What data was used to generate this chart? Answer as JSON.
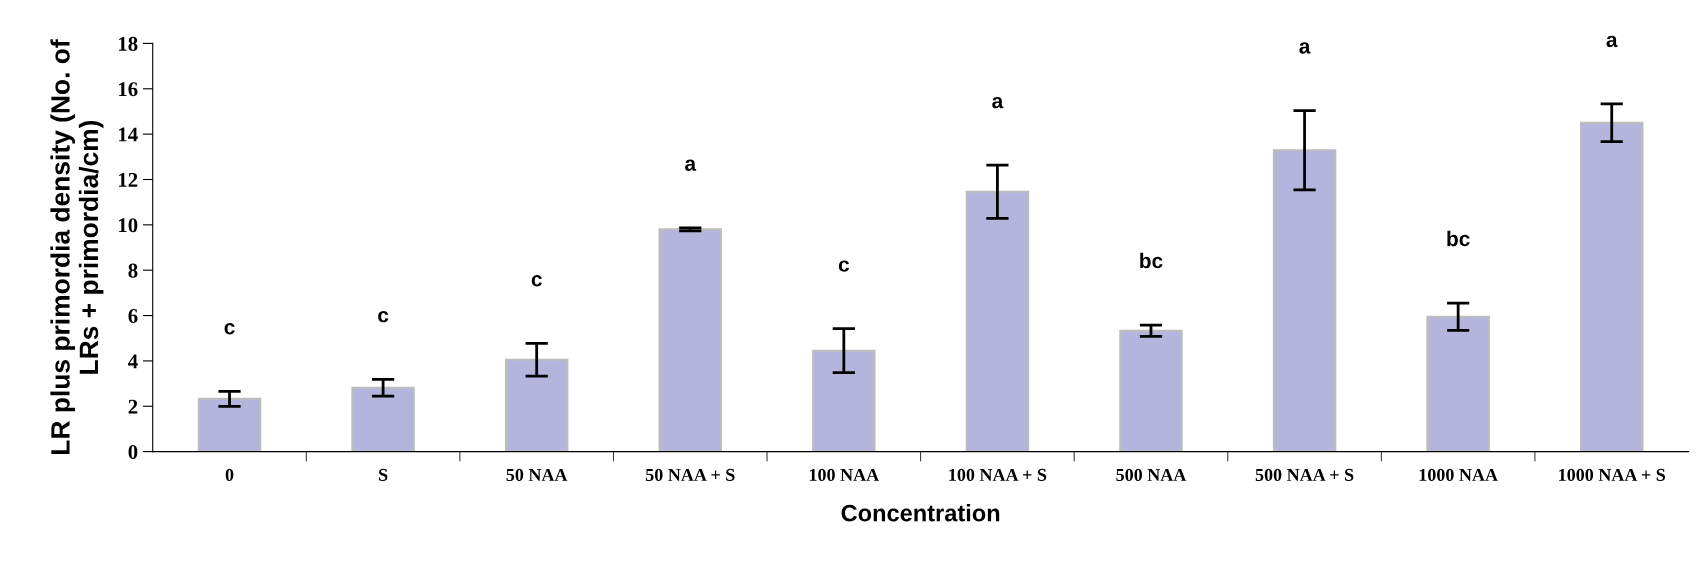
{
  "chart_data": {
    "type": "bar",
    "xlabel": "Concentration",
    "ylabel": "LR plus primordia density (No. of\nLRs + primordia/cm)",
    "categories": [
      "0",
      "S",
      "50 NAA",
      "50 NAA + S",
      "100 NAA",
      "100 NAA + S",
      "500 NAA",
      "500 NAA + S",
      "1000 NAA",
      "1000 NAA + S"
    ],
    "values": [
      2.33,
      2.82,
      4.05,
      9.8,
      4.45,
      11.46,
      5.33,
      13.29,
      5.95,
      14.5
    ],
    "errors": [
      0.33,
      0.37,
      0.72,
      0.07,
      0.97,
      1.17,
      0.25,
      1.75,
      0.6,
      0.83
    ],
    "color": "#b4b4dc",
    "ylim": [
      0,
      18
    ],
    "yticks": [
      0,
      2,
      4,
      6,
      8,
      10,
      12,
      14,
      16,
      18
    ],
    "grid": false,
    "legend": false,
    "annotations": [
      "c",
      "c",
      "c",
      "a",
      "c",
      "a",
      "bc",
      "a",
      "bc",
      "a"
    ]
  }
}
